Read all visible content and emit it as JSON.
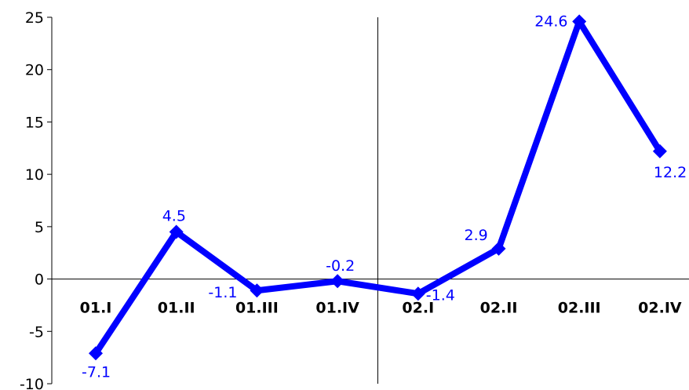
{
  "chart_data": {
    "type": "line",
    "categories": [
      "01.I",
      "01.II",
      "01.III",
      "01.IV",
      "02.I",
      "02.II",
      "02.III",
      "02.IV"
    ],
    "series": [
      {
        "values": [
          -7.1,
          4.5,
          -1.1,
          -0.2,
          -1.4,
          2.9,
          24.6,
          12.2
        ],
        "value_labels": [
          "-7.1",
          "4.5",
          "-1.1",
          "-0.2",
          "-1.4",
          "2.9",
          "24.6",
          "12.2"
        ],
        "color": "#0000FF",
        "marker": "diamond"
      }
    ],
    "yticks": [
      -10,
      -5,
      0,
      5,
      10,
      15,
      20,
      25
    ],
    "ytick_labels": [
      "-10",
      "-5",
      "0",
      "5",
      "10",
      "15",
      "20",
      "25"
    ],
    "ylim": [
      -10,
      25
    ],
    "grid": false,
    "legend": "none",
    "vertical_separator_after_category": 3,
    "label_color": "#0000FF",
    "axis_color": "#000000"
  }
}
